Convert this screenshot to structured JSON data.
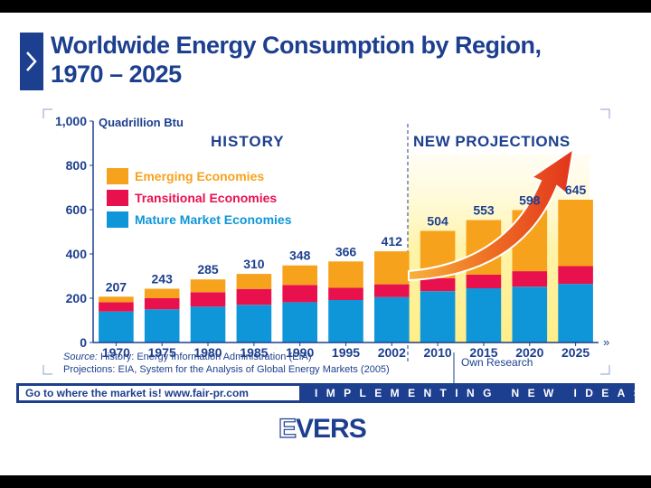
{
  "title_line1": "Worldwide Energy Consumption by Region,",
  "title_line2": "1970 – 2025",
  "chart_data": {
    "type": "bar",
    "stacked": true,
    "categories": [
      "1970",
      "1975",
      "1980",
      "1985",
      "1990",
      "1995",
      "2002",
      "2010",
      "2015",
      "2020",
      "2025"
    ],
    "series": [
      {
        "name": "Mature Market Economies",
        "color": "#0f96d8",
        "values": [
          140,
          150,
          162,
          170,
          182,
          192,
          205,
          232,
          245,
          252,
          265
        ]
      },
      {
        "name": "Transitional Economies",
        "color": "#e8114e",
        "values": [
          42,
          50,
          65,
          72,
          78,
          55,
          58,
          58,
          62,
          70,
          80
        ]
      },
      {
        "name": "Emerging Economies",
        "color": "#f7a21c",
        "values": [
          25,
          43,
          58,
          68,
          88,
          119,
          149,
          214,
          246,
          276,
          300
        ]
      }
    ],
    "totals": [
      207,
      243,
      285,
      310,
      348,
      366,
      412,
      504,
      553,
      598,
      645
    ],
    "ylabel": "Quadrillion Btu",
    "ylim": [
      0,
      1000
    ],
    "yticks": [
      "0",
      "200",
      "400",
      "600",
      "800",
      "1,000"
    ],
    "history_label": "HISTORY",
    "projection_label": "NEW PROJECTIONS",
    "legend_position": "top-left"
  },
  "source_label": "Source:",
  "source_line1": " History: Energy Information Administration (EIA)",
  "source_line2": "Projections: EIA, System for the Analysis of Global Energy Markets (2005)",
  "own_research": "Own Research",
  "footer_left": "Go to where the market is!   www.fair-pr.com",
  "footer_right": "IMPLEMENTING NEW IDEAS",
  "logo": "EVERS",
  "logo_first": "E",
  "logo_rest": "VERS"
}
